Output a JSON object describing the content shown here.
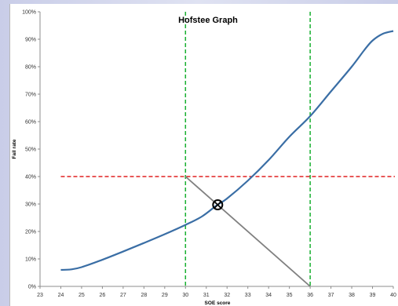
{
  "chart_data": {
    "type": "line",
    "title": "Hofstee Graph",
    "xlabel": "SOE score",
    "ylabel": "Fail rate",
    "xlim": [
      23,
      40
    ],
    "ylim": [
      0,
      100
    ],
    "x_ticks": [
      "23",
      "24",
      "25",
      "26",
      "27",
      "28",
      "29",
      "30",
      "31",
      "32",
      "33",
      "34",
      "35",
      "36",
      "37",
      "38",
      "39",
      "40"
    ],
    "y_ticks": [
      "0%",
      "10%",
      "20%",
      "30%",
      "40%",
      "50%",
      "60%",
      "70%",
      "80%",
      "90%",
      "100%"
    ],
    "grid": false,
    "series": [
      {
        "color": "#3a6ea5",
        "x": [
          24,
          24.5,
          25,
          26,
          27,
          28,
          29,
          30,
          30.8,
          31.5,
          32,
          33,
          34,
          35,
          36,
          37,
          38,
          38.6,
          39,
          39.5,
          40
        ],
        "y": [
          6,
          6.2,
          7,
          9.7,
          12.7,
          15.8,
          19,
          22.4,
          25.5,
          29.5,
          32,
          38.5,
          46,
          54.5,
          62,
          71,
          80,
          86,
          89.5,
          92,
          93
        ]
      }
    ],
    "reference_lines": [
      {
        "orientation": "horizontal",
        "value": 40,
        "color": "#e02020",
        "style": "dashed"
      },
      {
        "orientation": "vertical",
        "value": 30,
        "color": "#18b030",
        "style": "dashed"
      },
      {
        "orientation": "vertical",
        "value": 36,
        "color": "#18b030",
        "style": "dashed"
      }
    ],
    "diagonal_line": {
      "from": [
        30,
        40
      ],
      "to": [
        36,
        0
      ],
      "color": "#808080"
    },
    "intersection": {
      "x": 31.55,
      "y": 29.7
    }
  }
}
